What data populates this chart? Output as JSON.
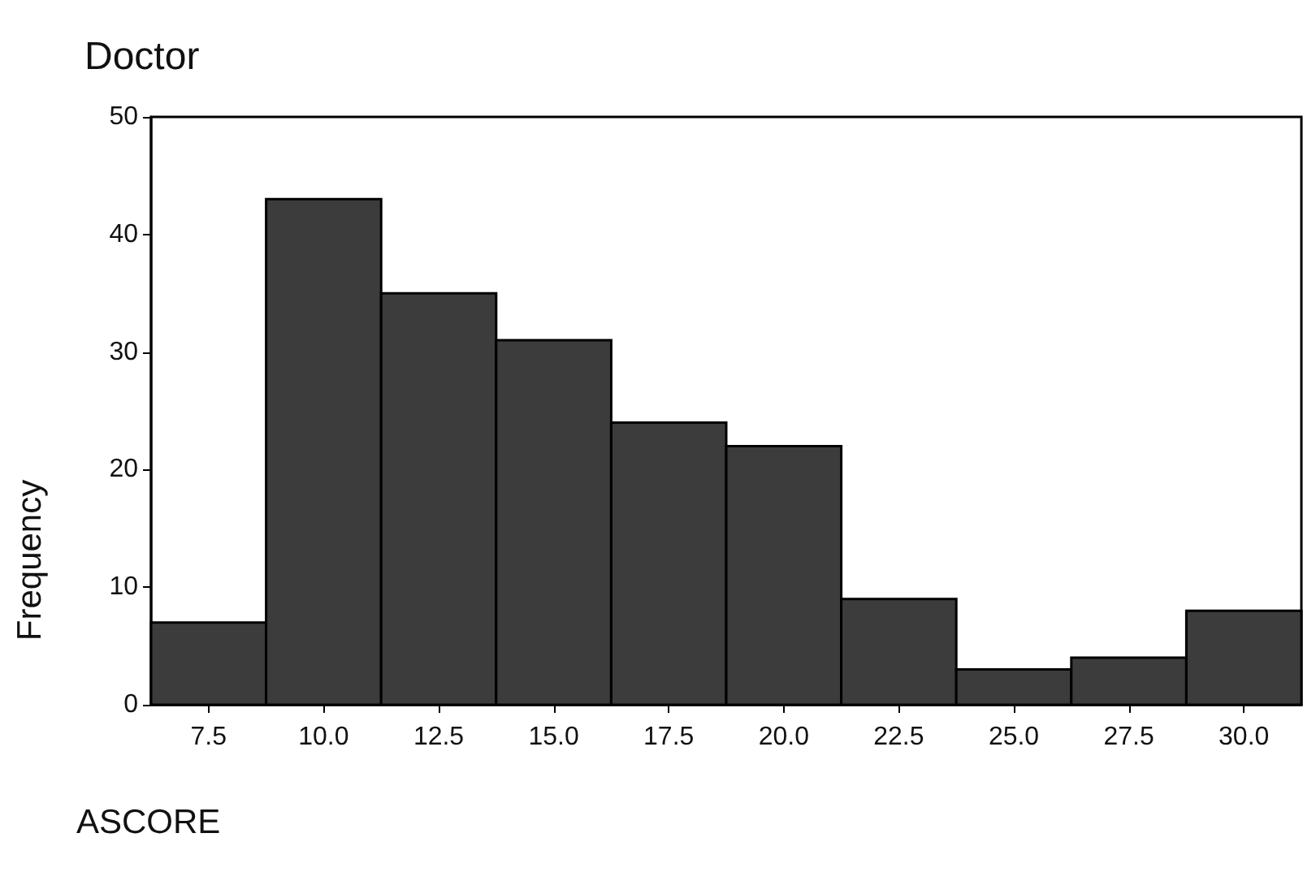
{
  "chart_data": {
    "type": "histogram",
    "title": "Doctor",
    "xlabel": "ASCORE",
    "ylabel": "Frequency",
    "bins": [
      6.25,
      8.75,
      11.25,
      13.75,
      16.25,
      18.75,
      21.25,
      23.75,
      26.25,
      28.75,
      31.25
    ],
    "values": [
      7,
      43,
      35,
      31,
      24,
      22,
      9,
      3,
      4,
      8
    ],
    "color": "#3c3c3c",
    "xlim": [
      6.25,
      31.25
    ],
    "xticks": [
      {
        "value": 7.5,
        "label": "7.5"
      },
      {
        "value": 10,
        "label": "10.0"
      },
      {
        "value": 12.5,
        "label": "12.5"
      },
      {
        "value": 15,
        "label": "15.0"
      },
      {
        "value": 17.5,
        "label": "17.5"
      },
      {
        "value": 20,
        "label": "20.0"
      },
      {
        "value": 22.5,
        "label": "22.5"
      },
      {
        "value": 25,
        "label": "25.0"
      },
      {
        "value": 27.5,
        "label": "27.5"
      },
      {
        "value": 30,
        "label": "30.0"
      }
    ],
    "ylim": [
      0,
      50
    ],
    "yticks": [
      0,
      10,
      20,
      30,
      40,
      50
    ],
    "grid": false
  }
}
